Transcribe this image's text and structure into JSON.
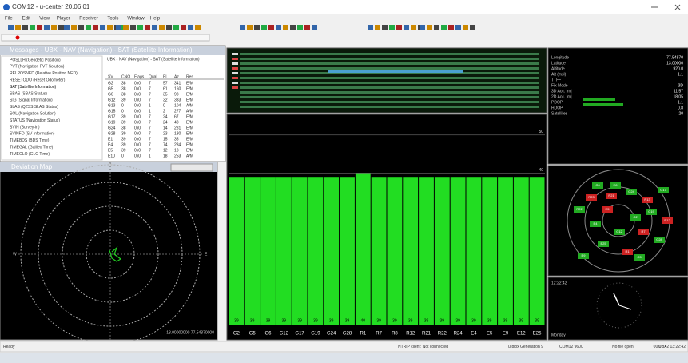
{
  "window": {
    "title": "COM12 - u-center 20.06.01"
  },
  "menu": [
    "File",
    "Edit",
    "View",
    "Player",
    "Receiver",
    "Tools",
    "Window",
    "Help"
  ],
  "messages": {
    "title": "Messages - UBX - NAV (Navigation) - SAT (Satellite Information)",
    "tree": [
      "POSLLH (Geodetic Position)",
      "PVT (Navigation PVT Solution)",
      "RELPOSNED (Relative Position NED)",
      "RESETODO (Reset Odometer)",
      "SAT (Satellite Information)",
      "SBAS (SBAS Status)",
      "SIG (Signal Information)",
      "SLAS (QZSS SLAS Status)",
      "SOL (Navigation Solution)",
      "STATUS (Navigation Status)",
      "SVIN (Survey-in)",
      "SVINFO (SV Information)",
      "TIMEBDS (BDS Time)",
      "TIMEGAL (Galileo Time)",
      "TIMEGLO (GLO Time)"
    ],
    "view_title": "UBX - NAV (Navigation) - SAT (Satellite Information)",
    "columns": [
      "SV",
      "CNO",
      "Flags",
      "Qual",
      "El",
      "Az",
      "Res"
    ],
    "rows": [
      [
        "G2",
        "38",
        "0x0",
        "7",
        "57",
        "341",
        "E/M"
      ],
      [
        "G5",
        "38",
        "0x0",
        "7",
        "61",
        "160",
        "E/M"
      ],
      [
        "G6",
        "38",
        "0x0",
        "7",
        "35",
        "93",
        "E/M"
      ],
      [
        "G12",
        "39",
        "0x0",
        "7",
        "32",
        "333",
        "E/M"
      ],
      [
        "G13",
        "0",
        "0x0",
        "1",
        "0",
        "104",
        "A/M"
      ],
      [
        "G15",
        "0",
        "0x0",
        "1",
        "2",
        "277",
        "A/M"
      ],
      [
        "G17",
        "39",
        "0x0",
        "7",
        "24",
        "67",
        "E/M"
      ],
      [
        "G19",
        "39",
        "0x0",
        "7",
        "24",
        "48",
        "E/M"
      ],
      [
        "G24",
        "38",
        "0x0",
        "7",
        "14",
        "281",
        "E/M"
      ],
      [
        "G28",
        "39",
        "0x0",
        "7",
        "23",
        "130",
        "E/M"
      ],
      [
        "E1",
        "39",
        "0x0",
        "7",
        "15",
        "35",
        "E/M"
      ],
      [
        "E4",
        "39",
        "0x0",
        "7",
        "74",
        "234",
        "E/M"
      ],
      [
        "E5",
        "39",
        "0x0",
        "7",
        "12",
        "13",
        "E/M"
      ],
      [
        "E10",
        "0",
        "0x0",
        "1",
        "18",
        "253",
        "A/M"
      ]
    ]
  },
  "deviation_map": {
    "title": "Deviation Map",
    "north": "N",
    "east": "E",
    "south": "S",
    "west": "W",
    "position": "13.00000000 77.54870000"
  },
  "signal_chart": {
    "categories": [
      "G2",
      "G5",
      "G6",
      "G12",
      "G17",
      "G19",
      "G24",
      "G28",
      "R1",
      "R7",
      "R8",
      "R12",
      "R21",
      "R22",
      "R24",
      "E4",
      "E5",
      "E9",
      "E12",
      "E25"
    ],
    "values": [
      39,
      39,
      39,
      39,
      39,
      39,
      39,
      39,
      40,
      39,
      39,
      39,
      39,
      39,
      39,
      39,
      39,
      39,
      39,
      39
    ],
    "ylim": [
      0,
      55
    ],
    "yticks": [
      40,
      50
    ],
    "color": "#22dd22"
  },
  "data_view": {
    "rows": [
      [
        "Longitude",
        "77.54870"
      ],
      [
        "Latitude",
        "13.00000"
      ],
      [
        "Altitude",
        "920.0"
      ],
      [
        "Alt (msl)",
        "1.1"
      ],
      [
        "TTFF",
        ""
      ],
      [
        "Fix Mode",
        "3D"
      ],
      [
        "3D Acc. [m]",
        "11.57"
      ],
      [
        "2D Acc. [m]",
        "18.05"
      ],
      [
        "PDOP",
        "1.1"
      ],
      [
        "HDOP",
        "0.8"
      ],
      [
        "Satellites",
        "20"
      ]
    ]
  },
  "sky_view": {
    "satellites": [
      "R23",
      "E8",
      "G24",
      "R13",
      "G17",
      "R22",
      "E5",
      "G2",
      "G19",
      "R12",
      "E4",
      "G12",
      "R7",
      "G28",
      "E25",
      "R1",
      "E9",
      "G5",
      "R21",
      "G6"
    ]
  },
  "clock": {
    "time": "12:22:42",
    "day": "Monday"
  },
  "status_bar": [
    "Ready",
    "NTRIP client: Not connected",
    "u-blox Generation 9",
    "COM12 9600",
    "No file open",
    "UBX",
    "00:01:42 13:22:42"
  ]
}
